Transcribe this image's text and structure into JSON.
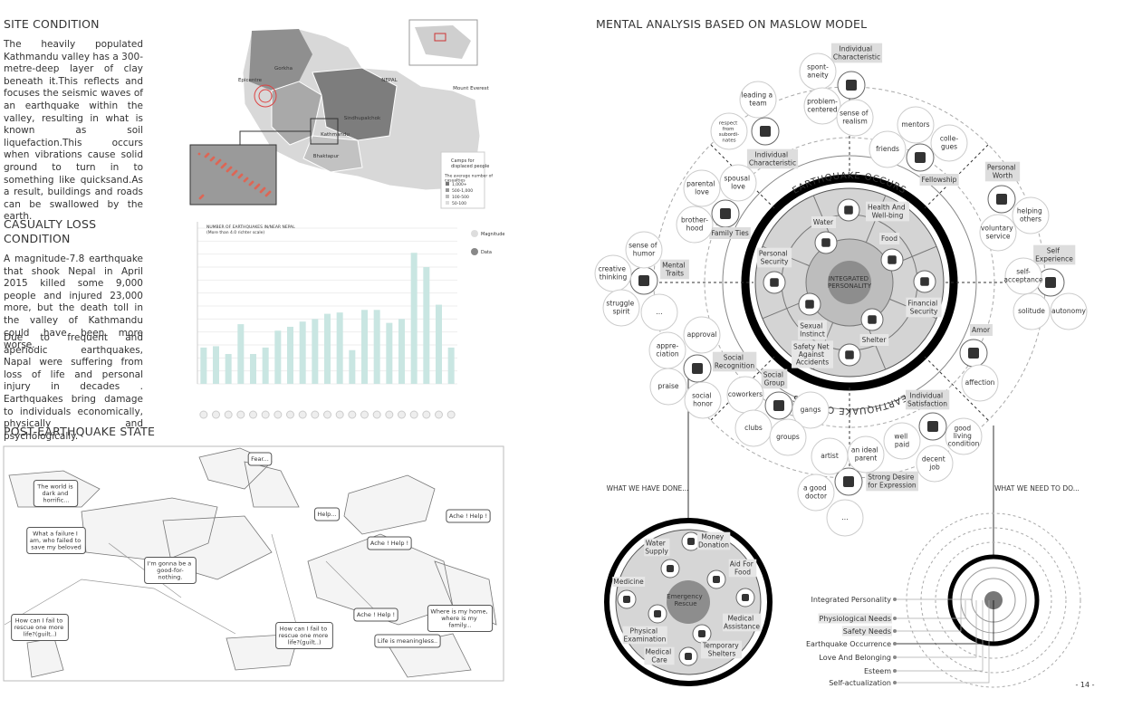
{
  "site_condition": {
    "title": "SITE CONDITION",
    "body": "The heavily populated Kathmandu valley has a 300-metre-deep layer of clay beneath it.This reflects and focuses the seismic waves of an earthquake within the valley, resulting in what is known as soil liquefaction.This occurs when vibrations cause solid ground to turn in to something like quicksand.As a result, buildings and roads can be swallowed by the earth."
  },
  "map": {
    "labels": [
      "Gorkha",
      "Epicentre",
      "Sindhupalchok",
      "Kathmandu",
      "Bhaktapur",
      "NEPAL",
      "Mount Everest"
    ],
    "legend_title": "Camps for displaced people",
    "casualties_title": "The average number of casualties",
    "casualty_classes": [
      "1,000+",
      "500-1,000",
      "100-500",
      "50-100"
    ]
  },
  "casualty": {
    "title": "CASUALTY LOSS CONDITION",
    "paragraphs": [
      "A magnitude-7.8 earthquake that shook Nepal in April 2015 killed some 9,000 people and injured 23,000 more, but the death toll in the valley of Kathmandu could have been more worse.",
      "Due to frequent and aperiodic earthquakes, Napal were suffering from loss of life and personal injury in decades . Earthquakes bring damage to individuals economically, physically and psychologically."
    ]
  },
  "chart_data": {
    "type": "bar",
    "title": "NUMBER OF EARTHQUAKES IN/NEAR NEPAL",
    "subtitle": "(More than 4.0 richter scale)",
    "values": [
      2.8,
      2.9,
      2.3,
      4.6,
      2.3,
      2.8,
      4.1,
      4.4,
      4.8,
      5.0,
      5.4,
      5.5,
      2.6,
      5.7,
      5.7,
      4.7,
      5.0,
      10.1,
      9.0,
      6.1,
      2.8
    ],
    "color": "#c9e6e2",
    "ylim": [
      0,
      12
    ],
    "legend": [
      "Magnitude",
      "Data"
    ]
  },
  "post_earthquake": {
    "title": "POST-EARTHQUAKE STATE",
    "speech": [
      "Fear...",
      "The world is dark and horrific...",
      "What a failure I am, who failed to save my beloved",
      "I'm gonna be a good-for-nothing.",
      "Help...",
      "Ache ! Help !",
      "Ache ! Help !",
      "How can I fail to rescue one more life?(guilt..)",
      "How can I fail to rescue one more life?(guilt..)",
      "Ache ! Help !",
      "Life is meaningless..",
      "Where is my home, where is my family..."
    ]
  },
  "maslow": {
    "title": "MENTAL ANALYSIS BASED ON MASLOW MODEL",
    "core": "INTEGRATED PERSONALITY",
    "banner": [
      "EARTHQUAKE OCCURS",
      "EARTHQUAKE OCCURS"
    ],
    "needs": [
      "Health And Well-bing",
      "Food",
      "Financial Security",
      "Shelter",
      "Sexual Instinct",
      "Safety Net Against Accidents",
      "Personal Security",
      "Water"
    ],
    "categories": [
      "Individual Characteristic",
      "Individual Characteristic",
      "Fellowship",
      "Personal Worth",
      "Self Experience",
      "Mental Traits",
      "Family Ties",
      "Amor",
      "Individual Satisfaction",
      "Strong Desire for Expression",
      "Social Group",
      "Social Recognition"
    ],
    "items": [
      "spont-aneity",
      "leading a team",
      "problem-centered",
      "sense of realism",
      "mentors",
      "colle-gues",
      "friends",
      "respect from subordi-nates",
      "parental love",
      "spousal love",
      "brother-hood",
      "sense of humor",
      "creative thinking",
      "struggle spirit",
      "...",
      "approval",
      "appre-ciation",
      "praise",
      "social honor",
      "coworkers",
      "clubs",
      "gangs",
      "groups",
      "artist",
      "an ideal parent",
      "a good doctor",
      "...",
      "well paid",
      "decent job",
      "good living condition",
      "affection",
      "helping others",
      "voluntary service",
      "self-acceptance",
      "solitude",
      "autonomy"
    ],
    "done": "WHAT WE HAVE DONE...",
    "todo": "WHAT WE NEED TO DO..."
  },
  "rescue": {
    "center": "Emergency Rescue",
    "items": [
      "Water Supply",
      "Money Donation",
      "Aid For Food",
      "Medical Assistance",
      "Temporary Shelters",
      "Medical Care",
      "Physical Examination",
      "Medicine"
    ]
  },
  "legend": [
    "Integrated Personality",
    "Physiological Needs",
    "Safety Needs",
    "Earthquake Occurrence",
    "Love And Belonging",
    "Esteem",
    "Self-actualization"
  ],
  "page_number": "- 14 -"
}
